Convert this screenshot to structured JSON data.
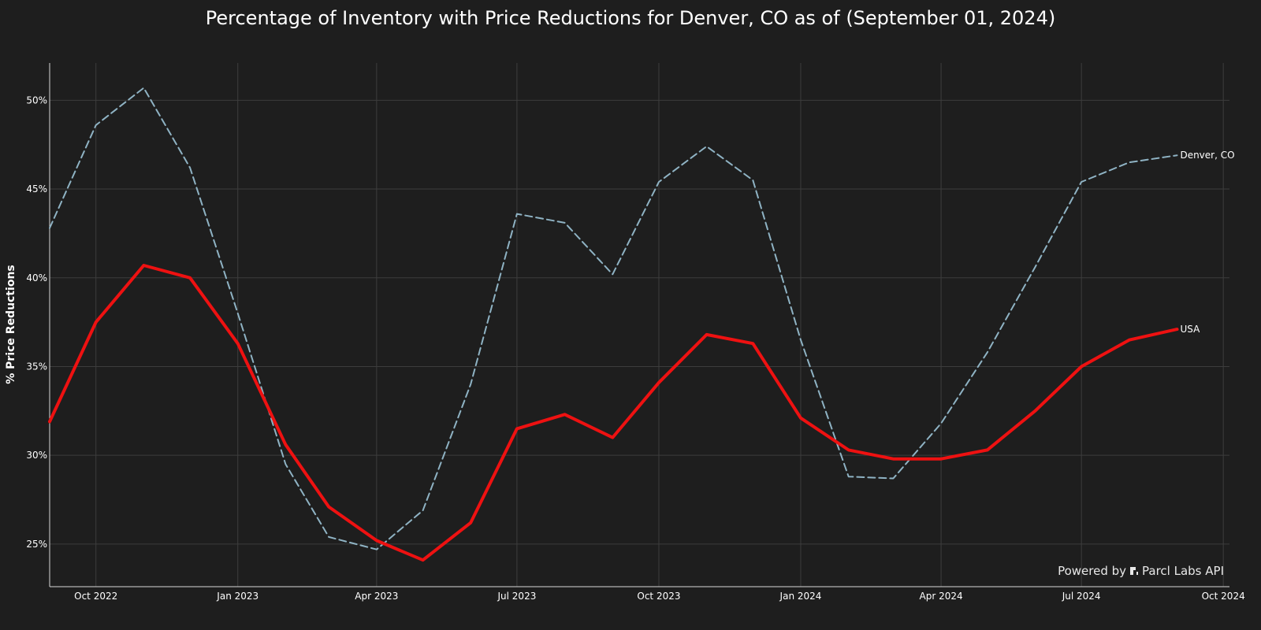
{
  "chart_data": {
    "type": "line",
    "title": "Percentage of Inventory with Price Reductions for Denver, CO as of (September 01, 2024)",
    "xlabel": "",
    "ylabel": "% Price Reductions",
    "x": [
      "2022-09-01",
      "2022-10-01",
      "2022-11-01",
      "2022-12-01",
      "2023-01-01",
      "2023-02-01",
      "2023-03-01",
      "2023-04-01",
      "2023-05-01",
      "2023-06-01",
      "2023-07-01",
      "2023-08-01",
      "2023-09-01",
      "2023-10-01",
      "2023-11-01",
      "2023-12-01",
      "2024-01-01",
      "2024-02-01",
      "2024-03-01",
      "2024-04-01",
      "2024-05-01",
      "2024-06-01",
      "2024-07-01",
      "2024-08-01",
      "2024-09-01"
    ],
    "xlim": [
      "2022-09-01",
      "2024-10-05"
    ],
    "ylim": [
      22.6,
      52.1
    ],
    "x_ticks": [
      {
        "date": "2022-10-01",
        "label": "Oct 2022"
      },
      {
        "date": "2023-01-01",
        "label": "Jan 2023"
      },
      {
        "date": "2023-04-01",
        "label": "Apr 2023"
      },
      {
        "date": "2023-07-01",
        "label": "Jul 2023"
      },
      {
        "date": "2023-10-01",
        "label": "Oct 2023"
      },
      {
        "date": "2024-01-01",
        "label": "Jan 2024"
      },
      {
        "date": "2024-04-01",
        "label": "Apr 2024"
      },
      {
        "date": "2024-07-01",
        "label": "Jul 2024"
      },
      {
        "date": "2024-10-01",
        "label": "Oct 2024"
      }
    ],
    "y_ticks": [
      {
        "value": 25,
        "label": "25%"
      },
      {
        "value": 30,
        "label": "30%"
      },
      {
        "value": 35,
        "label": "35%"
      },
      {
        "value": 40,
        "label": "40%"
      },
      {
        "value": 45,
        "label": "45%"
      },
      {
        "value": 50,
        "label": "50%"
      }
    ],
    "grid": true,
    "series": [
      {
        "name": "Denver, CO",
        "color": "#8fb3c4",
        "dash": "dashed",
        "values": [
          42.8,
          48.6,
          50.7,
          46.2,
          38.0,
          29.5,
          25.4,
          24.7,
          26.9,
          34.0,
          43.6,
          43.1,
          40.2,
          45.4,
          47.4,
          45.5,
          36.5,
          28.8,
          28.7,
          31.8,
          35.8,
          40.6,
          45.4,
          46.5,
          46.9
        ]
      },
      {
        "name": "USA",
        "color": "#ee1111",
        "dash": "solid",
        "values": [
          31.9,
          37.5,
          40.7,
          40.0,
          36.3,
          30.6,
          27.1,
          25.2,
          24.1,
          26.2,
          31.5,
          32.3,
          31.0,
          34.1,
          36.8,
          36.3,
          32.1,
          30.3,
          29.8,
          29.8,
          30.3,
          32.5,
          35.0,
          36.5,
          37.1
        ]
      }
    ]
  },
  "watermark": {
    "prefix": "Powered by",
    "brand": "Parcl Labs API",
    "icon": "parcl-logo-icon"
  }
}
